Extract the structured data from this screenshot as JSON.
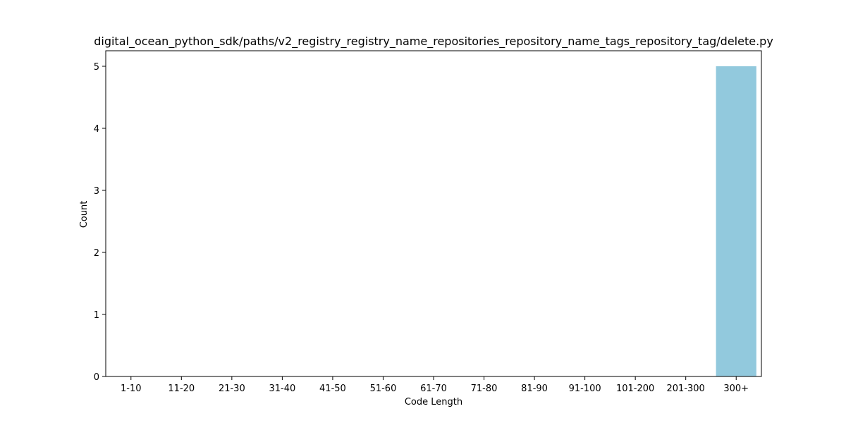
{
  "chart_data": {
    "type": "bar",
    "title": "digital_ocean_python_sdk/paths/v2_registry_registry_name_repositories_repository_name_tags_repository_tag/delete.py",
    "xlabel": "Code Length",
    "ylabel": "Count",
    "categories": [
      "1-10",
      "11-20",
      "21-30",
      "31-40",
      "41-50",
      "51-60",
      "61-70",
      "71-80",
      "81-90",
      "91-100",
      "101-200",
      "201-300",
      "300+"
    ],
    "values": [
      0,
      0,
      0,
      0,
      0,
      0,
      0,
      0,
      0,
      0,
      0,
      0,
      5
    ],
    "ylim": [
      0,
      5.25
    ],
    "yticks": [
      0,
      1,
      2,
      3,
      4,
      5
    ],
    "bar_color": "#92c9dd",
    "grid": false,
    "legend": "none"
  }
}
